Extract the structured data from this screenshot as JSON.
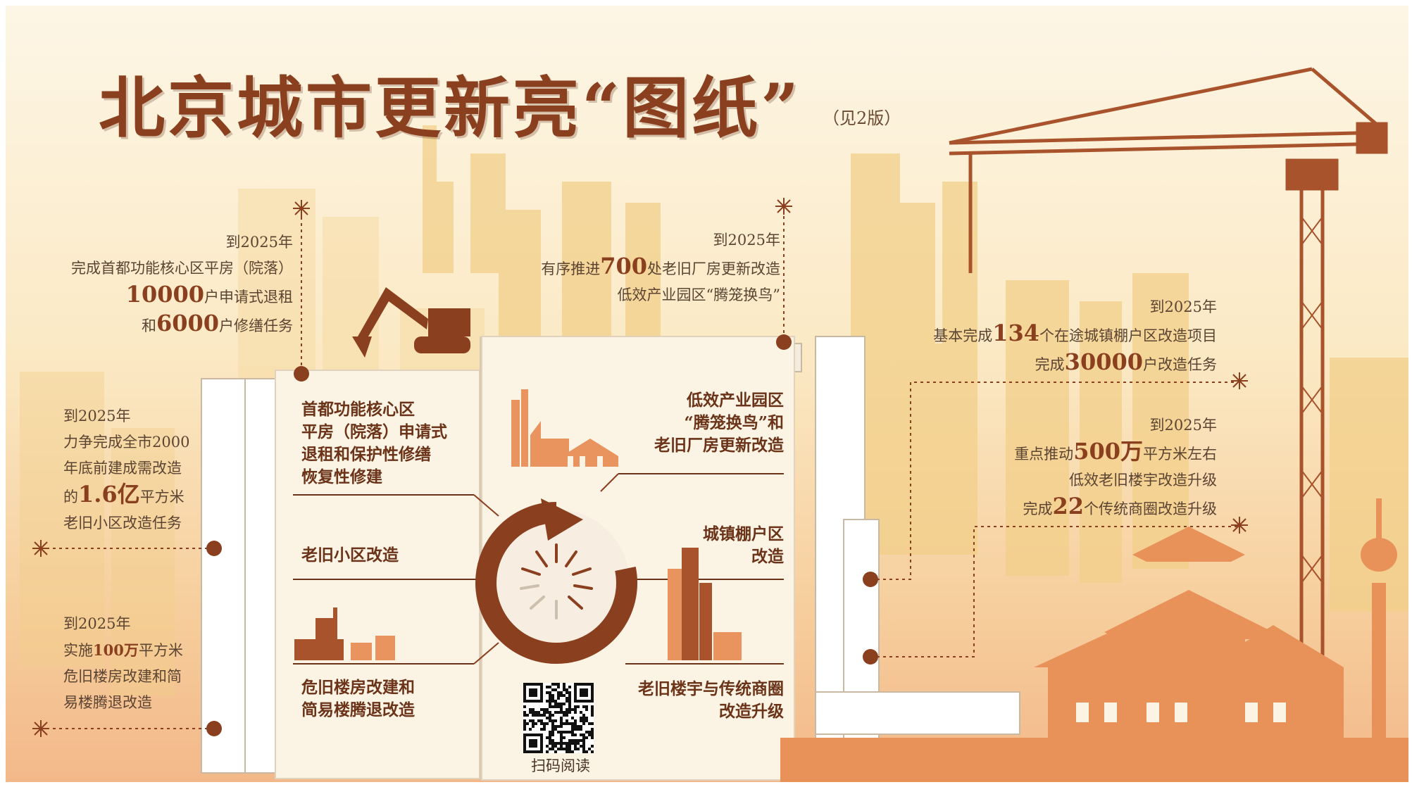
{
  "header": {
    "title": "北京城市更新亮“图纸”",
    "see_page": "（见2版）"
  },
  "left_notes": [
    {
      "lines": [
        {
          "parts": [
            {
              "t": "到2025年"
            }
          ]
        },
        {
          "parts": [
            {
              "t": "完成首都功能核心区平房（院落）"
            }
          ]
        },
        {
          "parts": [
            {
              "t": "10000",
              "big": true
            },
            {
              "t": "户申请式退租"
            }
          ]
        },
        {
          "parts": [
            {
              "t": "和"
            },
            {
              "t": "6000",
              "big": true
            },
            {
              "t": "户修缮任务"
            }
          ]
        }
      ]
    },
    {
      "lines": [
        {
          "parts": [
            {
              "t": "到2025年"
            }
          ]
        },
        {
          "parts": [
            {
              "t": "力争完成全市2000"
            }
          ]
        },
        {
          "parts": [
            {
              "t": "年底前建成需改造"
            }
          ]
        },
        {
          "parts": [
            {
              "t": "的"
            },
            {
              "t": "1.6亿",
              "big": true
            },
            {
              "t": "平方米"
            }
          ]
        },
        {
          "parts": [
            {
              "t": "老旧小区改造任务"
            }
          ]
        }
      ]
    },
    {
      "lines": [
        {
          "parts": [
            {
              "t": "到2025年"
            }
          ]
        },
        {
          "parts": [
            {
              "t": "实施"
            },
            {
              "t": "100万",
              "bold": true
            },
            {
              "t": "平方米"
            }
          ]
        },
        {
          "parts": [
            {
              "t": "危旧楼房改建和简"
            }
          ]
        },
        {
          "parts": [
            {
              "t": "易楼腾退改造"
            }
          ]
        }
      ]
    }
  ],
  "center_note": {
    "lines": [
      {
        "parts": [
          {
            "t": "到2025年"
          }
        ]
      },
      {
        "parts": [
          {
            "t": "有序推进"
          },
          {
            "t": "700",
            "big": true
          },
          {
            "t": "处老旧厂房更新改造"
          }
        ]
      },
      {
        "parts": [
          {
            "t": "低效产业园区“腾笼换鸟”"
          }
        ]
      }
    ]
  },
  "right_notes": [
    {
      "lines": [
        {
          "parts": [
            {
              "t": "到2025年"
            }
          ]
        },
        {
          "parts": [
            {
              "t": "基本完成"
            },
            {
              "t": "134",
              "big": true
            },
            {
              "t": "个在途城镇棚户区改造项目"
            }
          ]
        },
        {
          "parts": [
            {
              "t": "完成"
            },
            {
              "t": "30000",
              "big": true
            },
            {
              "t": "户改造任务"
            }
          ]
        }
      ]
    },
    {
      "lines": [
        {
          "parts": [
            {
              "t": "到2025年"
            }
          ]
        },
        {
          "parts": [
            {
              "t": "重点推动"
            },
            {
              "t": "500万",
              "big": true
            },
            {
              "t": "平方米左右"
            }
          ]
        },
        {
          "parts": [
            {
              "t": "低效老旧楼宇改造升级"
            }
          ]
        },
        {
          "parts": [
            {
              "t": "完成"
            },
            {
              "t": "22",
              "big": true
            },
            {
              "t": "个传统商圈改造升级"
            }
          ]
        }
      ]
    }
  ],
  "categories": {
    "core_area": [
      "首都功能核心区",
      "平房（院落）申请式",
      "退租和保护性修缮",
      "恢复性修建"
    ],
    "old_community": [
      "老旧小区改造"
    ],
    "dangerous_buildings": [
      "危旧楼房改建和",
      "简易楼腾退改造"
    ],
    "industrial": [
      "低效产业园区",
      "“腾笼换鸟”和",
      "老旧厂房更新改造"
    ],
    "shantytown": [
      "城镇棚户区",
      "改造"
    ],
    "commercial": [
      "老旧楼宇与传统商圈",
      "改造升级"
    ]
  },
  "qr": {
    "caption": "扫码阅读"
  },
  "colors": {
    "title": "#8a3f1f",
    "accent": "#8a3f1f",
    "text": "#5c4433",
    "panel": "#fbf3e4",
    "orange": "#e9935e",
    "skyline": "#f2c880"
  }
}
